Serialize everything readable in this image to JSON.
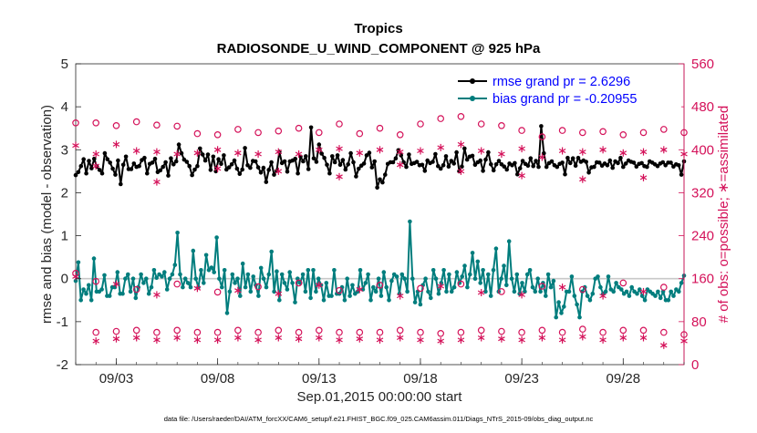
{
  "chart_data": {
    "type": "line",
    "title": "Tropics",
    "subtitle": "RADIOSONDE_U_WIND_COMPONENT @ 925 hPa",
    "xlabel": "Sep.01,2015 00:00:00 start",
    "ylabel_left": "rmse and bias (model - observation)",
    "ylabel_right": "# of obs: o=possible; ∗=assimilated",
    "footer": "data file: /Users/raeder/DAI/ATM_forcXX/CAM6_setup/f.e21.FHIST_BGC.f09_025.CAM6assim.011/Diags_NTrS_2015-09/obs_diag_output.nc",
    "xlim_days": [
      1.0,
      31.0
    ],
    "x_ticks": [
      {
        "day": 3,
        "label": "09/03"
      },
      {
        "day": 8,
        "label": "09/08"
      },
      {
        "day": 13,
        "label": "09/13"
      },
      {
        "day": 18,
        "label": "09/18"
      },
      {
        "day": 23,
        "label": "09/23"
      },
      {
        "day": 28,
        "label": "09/28"
      }
    ],
    "ylim_left": [
      -2,
      5
    ],
    "y_ticks_left": [
      "-2",
      "-1",
      "0",
      "1",
      "2",
      "3",
      "4",
      "5"
    ],
    "ylim_right": [
      0,
      560
    ],
    "y_ticks_right": [
      "0",
      "80",
      "160",
      "240",
      "320",
      "400",
      "480",
      "560"
    ],
    "zero_line": 0,
    "legend": [
      {
        "label": "rmse grand pr = 2.6296",
        "color": "#000000"
      },
      {
        "label": "bias grand pr = -0.20955",
        "color": "#007d7d"
      }
    ],
    "series": [
      {
        "name": "rmse",
        "color": "#000000",
        "axis": "left",
        "values": [
          2.41,
          2.48,
          2.62,
          2.78,
          2.45,
          2.74,
          2.57,
          2.79,
          2.61,
          2.53,
          2.45,
          2.92,
          2.78,
          2.7,
          2.56,
          2.42,
          2.75,
          2.2,
          2.65,
          2.84,
          2.55,
          2.55,
          2.68,
          2.6,
          2.62,
          2.76,
          2.81,
          2.45,
          2.67,
          2.7,
          2.79,
          2.48,
          2.52,
          2.6,
          2.71,
          2.4,
          2.8,
          2.66,
          2.73,
          3.12,
          2.92,
          2.77,
          2.72,
          2.62,
          2.41,
          2.54,
          2.62,
          3.03,
          2.89,
          2.75,
          2.89,
          2.53,
          2.84,
          2.5,
          2.78,
          2.67,
          2.87,
          2.54,
          2.59,
          2.66,
          2.75,
          2.56,
          2.44,
          2.54,
          3.04,
          2.64,
          2.58,
          2.74,
          2.73,
          2.59,
          2.47,
          2.58,
          2.25,
          2.53,
          2.71,
          2.42,
          2.51,
          2.95,
          2.69,
          2.73,
          2.49,
          2.73,
          2.75,
          2.79,
          2.45,
          2.84,
          2.73,
          2.85,
          2.55,
          3.52,
          2.8,
          2.72,
          3.12,
          2.91,
          2.81,
          2.65,
          2.45,
          2.85,
          2.71,
          2.87,
          2.65,
          2.76,
          2.54,
          2.66,
          2.92,
          2.71,
          2.38,
          2.56,
          2.63,
          2.68,
          2.87,
          2.93,
          2.59,
          2.73,
          2.12,
          2.31,
          2.24,
          2.42,
          2.67,
          2.71,
          2.71,
          2.8,
          2.99,
          2.87,
          2.71,
          2.6,
          2.89,
          2.67,
          2.69,
          2.72,
          2.64,
          2.65,
          2.51,
          2.75,
          2.69,
          2.72,
          2.9,
          2.62,
          2.56,
          2.64,
          2.85,
          2.61,
          2.74,
          2.68,
          2.94,
          2.5,
          2.61,
          3.03,
          2.77,
          2.84,
          2.86,
          2.65,
          2.71,
          2.75,
          2.51,
          2.77,
          2.94,
          2.66,
          2.52,
          2.66,
          2.74,
          2.66,
          2.61,
          2.54,
          2.68,
          2.64,
          2.69,
          2.43,
          2.57,
          2.74,
          2.67,
          2.63,
          2.8,
          2.62,
          2.74,
          2.6,
          3.55,
          2.92,
          2.6,
          2.69,
          2.73,
          2.64,
          2.6,
          2.67,
          2.7,
          2.43,
          2.81,
          2.69,
          2.8,
          2.63,
          2.81,
          2.72,
          2.75,
          2.72,
          2.47,
          2.59,
          2.6,
          2.71,
          2.7,
          2.63,
          2.68,
          2.64,
          2.75,
          2.58,
          2.73,
          2.69,
          2.81,
          2.6,
          2.68,
          2.75,
          2.72,
          2.7,
          2.61,
          2.67,
          2.69,
          2.62,
          2.6,
          2.73,
          2.7,
          2.66,
          2.62,
          2.68,
          2.71,
          2.64,
          2.7,
          2.7,
          2.61,
          2.66,
          2.64,
          2.42,
          2.73
        ]
      },
      {
        "name": "bias",
        "color": "#007d7d",
        "axis": "left",
        "values": [
          -0.05,
          0.38,
          -0.5,
          -0.25,
          -0.35,
          -0.15,
          -0.5,
          0.47,
          -0.3,
          -0.3,
          -0.25,
          0.08,
          -0.4,
          -0.4,
          -0.2,
          -0.2,
          0.15,
          -0.35,
          -0.35,
          0.0,
          0.1,
          -0.3,
          0.0,
          -0.45,
          -0.2,
          0.1,
          -0.1,
          0.0,
          -0.35,
          -0.2,
          0.2,
          0.02,
          0.1,
          0.05,
          0.15,
          -0.25,
          0.0,
          0.1,
          0.32,
          1.07,
          0.1,
          -0.2,
          0.0,
          -0.1,
          -0.2,
          0.65,
          0.0,
          -0.2,
          0.2,
          -0.1,
          0.55,
          0.2,
          0.26,
          0.15,
          0.96,
          0.0,
          -0.2,
          0.2,
          -0.8,
          -0.3,
          0.1,
          -0.1,
          0.0,
          -0.4,
          0.35,
          -0.2,
          0.1,
          -0.3,
          0.05,
          -0.15,
          -0.4,
          0.25,
          0.0,
          -0.2,
          0.1,
          0.63,
          -0.3,
          0.17,
          -0.5,
          0.1,
          -0.1,
          -0.25,
          0.15,
          -0.1,
          -0.55,
          0.0,
          -0.1,
          0.1,
          -0.3,
          0.2,
          -0.45,
          0.2,
          -0.3,
          0.0,
          -0.15,
          -0.5,
          -0.1,
          -0.4,
          -0.4,
          0.2,
          -0.35,
          -0.35,
          -0.2,
          -0.5,
          0.0,
          -0.4,
          -0.15,
          -0.35,
          -0.3,
          0.2,
          -0.25,
          -0.1,
          0.1,
          -0.5,
          -0.2,
          -0.3,
          0.0,
          -0.4,
          0.15,
          -0.2,
          -0.5,
          -0.05,
          0.1,
          0.05,
          -0.35,
          0.1,
          0.0,
          -0.3,
          1.33,
          0.0,
          -0.55,
          -0.3,
          -0.6,
          -0.15,
          0.0,
          -0.3,
          -0.45,
          0.2,
          0.0,
          -0.35,
          -0.1,
          0.2,
          -0.3,
          0.1,
          -0.3,
          -0.2,
          0.15,
          -0.1,
          0.05,
          0.3,
          -0.2,
          0.1,
          0.6,
          0.0,
          0.4,
          -0.1,
          0.2,
          -0.3,
          0.1,
          -0.4,
          0.2,
          0.7,
          -0.3,
          0.0,
          0.3,
          -0.15,
          0.87,
          0.0,
          -0.3,
          0.1,
          -0.35,
          -0.1,
          -0.3,
          0.1,
          0.2,
          -0.2,
          -0.3,
          0.0,
          -0.3,
          -0.1,
          -0.4,
          0.1,
          -0.2,
          -0.05,
          -0.9,
          -0.55,
          -0.8,
          -0.65,
          -0.3,
          -0.3,
          0.05,
          -0.4,
          -0.6,
          -0.9,
          -0.3,
          -0.2,
          -0.4,
          -0.5,
          -0.35,
          0.0,
          0.05,
          -0.2,
          -0.35,
          -0.3,
          0.05,
          -0.25,
          -0.3,
          -0.1,
          -0.2,
          -0.25,
          -0.35,
          -0.3,
          -0.4,
          -0.2,
          -0.3,
          -0.35,
          -0.25,
          -0.4,
          -0.5,
          -0.25,
          -0.3,
          -0.35,
          -0.4,
          -0.3,
          -0.45,
          -0.3,
          -0.5,
          -0.5,
          -0.3,
          -0.4,
          -0.25,
          -0.3,
          -0.1,
          0.07
        ]
      },
      {
        "name": "obs possible (12Z)",
        "axis": "right",
        "marker": "o",
        "color": "#d41159",
        "x_days": [
          1,
          2,
          3,
          4,
          5,
          6,
          7,
          8,
          9,
          10,
          11,
          12,
          13,
          14,
          15,
          16,
          17,
          18,
          19,
          20,
          21,
          22,
          23,
          24,
          25,
          26,
          27,
          28,
          29,
          30,
          31
        ],
        "values": [
          450,
          450,
          445,
          452,
          446,
          444,
          430,
          428,
          438,
          432,
          435,
          440,
          432,
          448,
          430,
          440,
          428,
          448,
          458,
          462,
          448,
          445,
          436,
          424,
          436,
          432,
          434,
          428,
          432,
          438,
          432
        ]
      },
      {
        "name": "obs assimilated (12Z)",
        "axis": "right",
        "marker": "*",
        "color": "#d41159",
        "x_days": [
          1,
          2,
          3,
          4,
          5,
          6,
          7,
          8,
          9,
          10,
          11,
          12,
          13,
          14,
          15,
          16,
          17,
          18,
          19,
          20,
          21,
          22,
          23,
          24,
          25,
          26,
          27,
          28,
          29,
          30,
          31
        ],
        "values": [
          408,
          392,
          410,
          398,
          396,
          392,
          394,
          400,
          394,
          392,
          396,
          392,
          400,
          402,
          394,
          400,
          396,
          398,
          404,
          410,
          398,
          392,
          402,
          386,
          398,
          396,
          400,
          394,
          396,
          400,
          392
        ]
      },
      {
        "name": "obs possible (00Z)",
        "axis": "right",
        "marker": "o",
        "color": "#d41159",
        "x_days": [
          1,
          2,
          3,
          4,
          5,
          6,
          7,
          8,
          9,
          10,
          11,
          12,
          13,
          14,
          15,
          16,
          17,
          18,
          19,
          20,
          21,
          22,
          23,
          24,
          25,
          26,
          27,
          28,
          29,
          30,
          31
        ],
        "values": [
          170,
          60,
          62,
          64,
          60,
          64,
          60,
          60,
          64,
          60,
          64,
          60,
          64,
          60,
          60,
          60,
          64,
          60,
          58,
          60,
          64,
          62,
          60,
          64,
          60,
          66,
          60,
          64,
          64,
          60,
          56
        ]
      },
      {
        "name": "obs assimilated (00Z)",
        "axis": "right",
        "marker": "*",
        "color": "#d41159",
        "x_days": [
          1,
          2,
          3,
          4,
          5,
          6,
          7,
          8,
          9,
          10,
          11,
          12,
          13,
          14,
          15,
          16,
          17,
          18,
          19,
          20,
          21,
          22,
          23,
          24,
          25,
          26,
          27,
          28,
          29,
          30,
          31
        ],
        "values": [
          164,
          44,
          48,
          50,
          46,
          50,
          46,
          46,
          50,
          46,
          50,
          48,
          50,
          46,
          48,
          46,
          50,
          46,
          44,
          46,
          50,
          48,
          46,
          50,
          46,
          52,
          46,
          50,
          50,
          36,
          44
        ]
      },
      {
        "name": "obs assimilated (mid-range)",
        "axis": "right",
        "marker": "*",
        "color": "#d41159",
        "x_days": [
          2,
          5,
          8,
          11,
          14,
          17,
          20,
          23,
          26,
          29
        ],
        "values": [
          370,
          340,
          365,
          360,
          350,
          372,
          360,
          352,
          345,
          348
        ]
      },
      {
        "name": "obs possible (low)",
        "axis": "right",
        "marker": "o",
        "color": "#d41159",
        "x_days": [
          2,
          4,
          6,
          8,
          10,
          12,
          14,
          16,
          18,
          20,
          22,
          24,
          26,
          28,
          30
        ],
        "values": [
          155,
          140,
          150,
          135,
          145,
          152,
          138,
          148,
          142,
          150,
          136,
          146,
          140,
          152,
          144
        ]
      },
      {
        "name": "obs assimilated (low)",
        "axis": "right",
        "marker": "*",
        "color": "#d41159",
        "x_days": [
          3,
          5,
          7,
          9,
          11,
          13,
          15,
          17,
          19,
          21,
          23,
          25,
          27,
          29
        ],
        "values": [
          150,
          130,
          142,
          138,
          132,
          148,
          140,
          128,
          146,
          134,
          130,
          144,
          128,
          136
        ]
      }
    ]
  }
}
